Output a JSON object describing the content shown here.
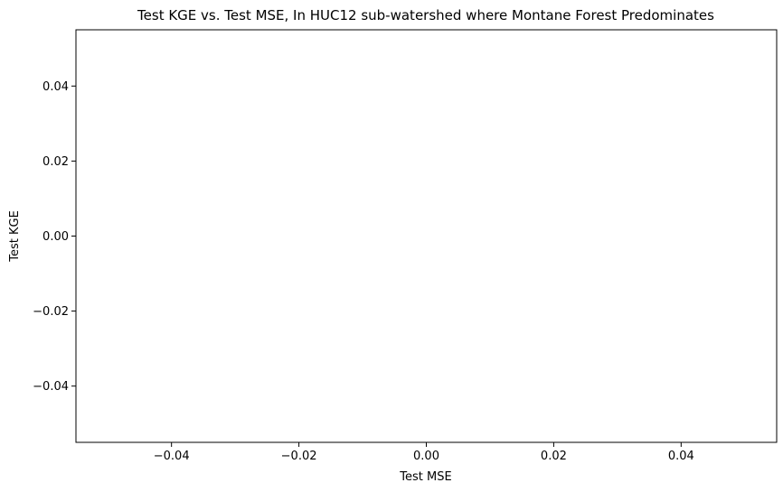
{
  "chart_data": {
    "type": "scatter",
    "title": "Test KGE vs. Test MSE, In HUC12 sub-watershed where Montane Forest Predominates",
    "xlabel": "Test MSE",
    "ylabel": "Test KGE",
    "x": [],
    "y": [],
    "xlim": [
      -0.055,
      0.055
    ],
    "ylim": [
      -0.055,
      0.055
    ],
    "xticks": [
      -0.04,
      -0.02,
      0.0,
      0.02,
      0.04
    ],
    "xtick_labels": [
      "−0.04",
      "−0.02",
      "0.00",
      "0.02",
      "0.04"
    ],
    "yticks": [
      -0.04,
      -0.02,
      0.0,
      0.02,
      0.04
    ],
    "ytick_labels": [
      "−0.04",
      "−0.02",
      "0.00",
      "0.02",
      "0.04"
    ],
    "grid": false,
    "legend": false
  }
}
